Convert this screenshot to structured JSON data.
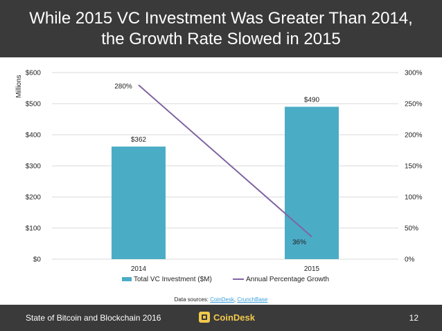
{
  "header": {
    "title_line1": "While 2015 VC Investment Was Greater Than 2014,",
    "title_line2": "the Growth Rate Slowed in 2015"
  },
  "chart_data": {
    "type": "bar",
    "categories": [
      "2014",
      "2015"
    ],
    "series": [
      {
        "name": "Total VC Investment ($M)",
        "type": "bar",
        "axis": "left",
        "values": [
          362,
          490
        ],
        "labels": [
          "$362",
          "$490"
        ],
        "color": "#4bacc6"
      },
      {
        "name": "Annual Percentage Growth",
        "type": "line",
        "axis": "right",
        "values": [
          280,
          36
        ],
        "labels": [
          "280%",
          "36%"
        ],
        "color": "#8064a2"
      }
    ],
    "ylabel": "Millions",
    "ylim": [
      0,
      600
    ],
    "y_ticks": [
      "$0",
      "$100",
      "$200",
      "$300",
      "$400",
      "$500",
      "$600"
    ],
    "y2lim": [
      0,
      300
    ],
    "y2_ticks": [
      "0%",
      "50%",
      "100%",
      "150%",
      "200%",
      "250%",
      "300%"
    ],
    "legend_position": "bottom"
  },
  "sources": {
    "prefix": "Data sources: ",
    "link1": "CoinDesk",
    "separator": ", ",
    "link2": "CrunchBase"
  },
  "footer": {
    "left_text": "State of Bitcoin and Blockchain 2016",
    "logo_text": "CoinDesk",
    "page_number": "12"
  }
}
